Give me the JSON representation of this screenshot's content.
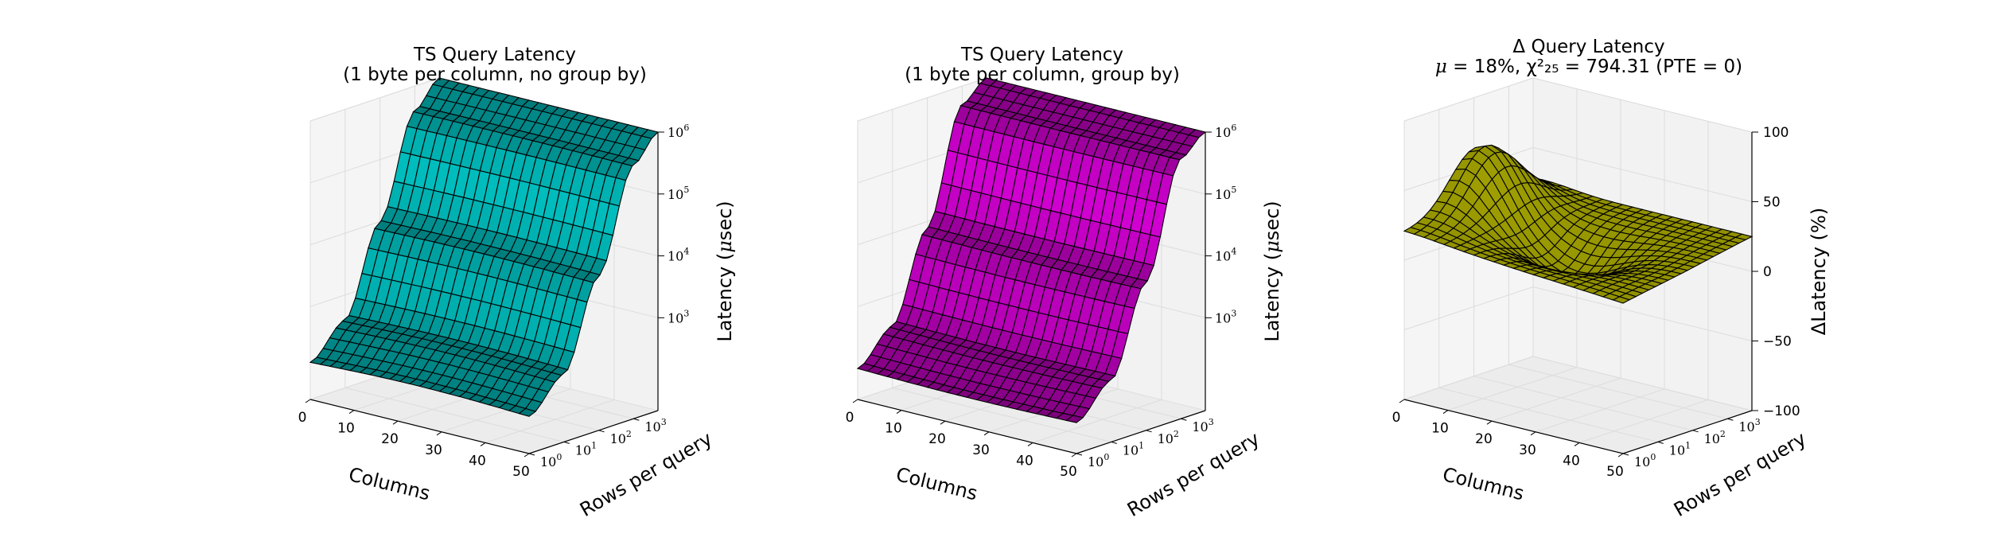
{
  "chart_data": [
    {
      "type": "surface",
      "title_lines": [
        "TS Query Latency",
        "(1 byte per column, no group by)"
      ],
      "xlabel": "Columns",
      "ylabel": "Rows per query",
      "zlabel": "Latency (μsec)",
      "x_ticks": [
        "0",
        "10",
        "20",
        "30",
        "40",
        "50"
      ],
      "y_ticks": [
        "10^0",
        "10^1",
        "10^2",
        "10^3"
      ],
      "z_ticks": [
        "10^3",
        "10^4",
        "10^5",
        "10^6"
      ],
      "xlim": [
        0,
        50
      ],
      "ylim_log10": [
        0,
        3.7
      ],
      "zlim_log10": [
        1.5,
        6.0
      ],
      "surface_color": "#00c8c8",
      "edge_color": "#000000",
      "grid": true,
      "surface_desc": "latency rises steeply with rows per query; near-flat across columns",
      "z_at_rows_log10": {
        "rows": [
          0,
          1,
          2,
          3,
          3.7
        ],
        "latency_log10": [
          2.1,
          2.6,
          4.0,
          5.6,
          6.0
        ]
      }
    },
    {
      "type": "surface",
      "title_lines": [
        "TS Query Latency",
        "(1 byte per column, group by)"
      ],
      "xlabel": "Columns",
      "ylabel": "Rows per query",
      "zlabel": "Latency (μsec)",
      "x_ticks": [
        "0",
        "10",
        "20",
        "30",
        "40",
        "50"
      ],
      "y_ticks": [
        "10^0",
        "10^1",
        "10^2",
        "10^3"
      ],
      "z_ticks": [
        "10^3",
        "10^4",
        "10^5",
        "10^6"
      ],
      "xlim": [
        0,
        50
      ],
      "ylim_log10": [
        0,
        3.7
      ],
      "zlim_log10": [
        1.5,
        6.0
      ],
      "surface_color": "#d200d2",
      "edge_color": "#000000",
      "grid": true,
      "surface_desc": "latency rises steeply with rows per query; near-flat across columns",
      "z_at_rows_log10": {
        "rows": [
          0,
          1,
          2,
          3,
          3.7
        ],
        "latency_log10": [
          2.0,
          2.5,
          3.9,
          5.7,
          6.0
        ]
      }
    },
    {
      "type": "surface",
      "title_lines": [
        "Δ Query Latency",
        "μ = 18%, χ²₂₅ = 794.31 (PTE = 0)"
      ],
      "xlabel": "Columns",
      "ylabel": "Rows per query",
      "zlabel": "ΔLatency (%)",
      "x_ticks": [
        "0",
        "10",
        "20",
        "30",
        "40",
        "50"
      ],
      "y_ticks": [
        "10^0",
        "10^1",
        "10^2",
        "10^3"
      ],
      "z_ticks": [
        "−100",
        "−50",
        "0",
        "50",
        "100"
      ],
      "xlim": [
        0,
        50
      ],
      "ylim_log10": [
        0,
        3.7
      ],
      "zlim": [
        -100,
        100
      ],
      "surface_color": "#c8c800",
      "edge_color": "#000000",
      "grid": true,
      "mean_percent": 18,
      "chi2": 794.31,
      "dof": 25,
      "pte": 0
    }
  ]
}
